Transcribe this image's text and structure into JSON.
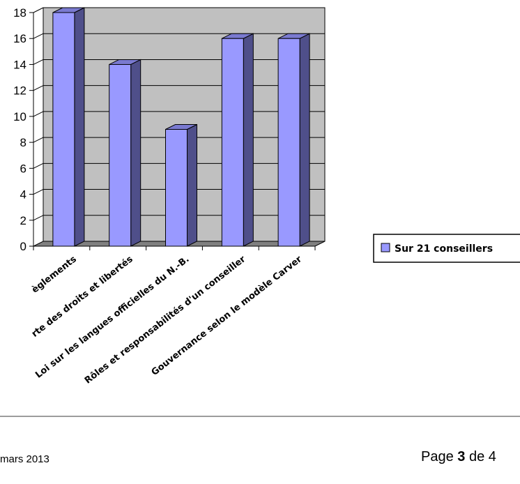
{
  "chart_data": {
    "type": "bar",
    "categories": [
      "Arrêtés et Règlements",
      "Charte des droits et libertés",
      "Loi sur les langues officielles du N.-B.",
      "Rôles et responsabilités d'un conseiller",
      "Gouvernance selon le modèle Carver"
    ],
    "categories_visible": [
      "èglements",
      "rte des droits et libertés",
      "Loi sur les langues officielles du N.-B.",
      "Rôles et responsabilités d'un conseiller",
      "Gouvernance selon le modèle Carver"
    ],
    "series": [
      {
        "name": "Sur 21 conseillers",
        "values": [
          18,
          14,
          9,
          16,
          16
        ]
      }
    ],
    "yticks": [
      "0",
      "2",
      "4",
      "6",
      "8",
      "10",
      "12",
      "14",
      "16",
      "18"
    ],
    "ylim": [
      0,
      18
    ],
    "grid": true,
    "legend_position": "right",
    "colors": {
      "bar_front": "#9999ff",
      "bar_side": "#4f4f8a",
      "bar_top": "#7a7ad0",
      "plot_wall": "#c0c0c0",
      "gridline": "#000000"
    }
  },
  "footer": {
    "date": "mars 2013",
    "page_prefix": "Page ",
    "page_number": "3",
    "page_suffix": " de 4"
  }
}
